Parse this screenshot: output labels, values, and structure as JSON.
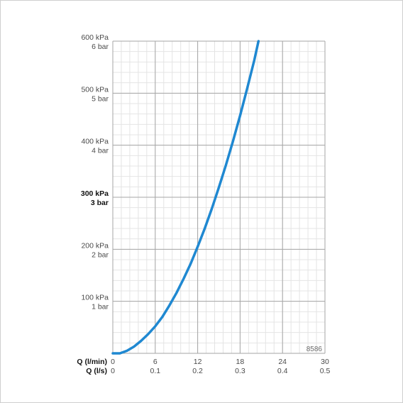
{
  "chart_data": {
    "type": "line",
    "title": "",
    "x_axis": {
      "label_primary": "Q (l/min)",
      "label_secondary": "Q (l/s)",
      "range": [
        0,
        30
      ],
      "ticks_primary": [
        {
          "value": 0,
          "label": "0"
        },
        {
          "value": 6,
          "label": "6"
        },
        {
          "value": 12,
          "label": "12"
        },
        {
          "value": 18,
          "label": "18"
        },
        {
          "value": 24,
          "label": "24"
        },
        {
          "value": 30,
          "label": "30"
        }
      ],
      "ticks_secondary": [
        {
          "value": 0,
          "label": "0"
        },
        {
          "value": 6,
          "label": "0.1"
        },
        {
          "value": 12,
          "label": "0.2"
        },
        {
          "value": 18,
          "label": "0.3"
        },
        {
          "value": 24,
          "label": "0.4"
        },
        {
          "value": 30,
          "label": "0.5"
        }
      ]
    },
    "y_axis": {
      "range": [
        0,
        600
      ],
      "unit": "kPa",
      "ticks": [
        {
          "value": 100,
          "kpa": "100 kPa",
          "bar": "1 bar",
          "bold": false
        },
        {
          "value": 200,
          "kpa": "200 kPa",
          "bar": "2 bar",
          "bold": false
        },
        {
          "value": 300,
          "kpa": "300 kPa",
          "bar": "3 bar",
          "bold": true
        },
        {
          "value": 400,
          "kpa": "400 kPa",
          "bar": "4 bar",
          "bold": false
        },
        {
          "value": 500,
          "kpa": "500 kPa",
          "bar": "5 bar",
          "bold": false
        },
        {
          "value": 600,
          "kpa": "600 kPa",
          "bar": "6 bar",
          "bold": false
        }
      ]
    },
    "grid": true,
    "minor_divisions": 5,
    "series": [
      {
        "color": "#1f88d1",
        "points": [
          {
            "x": 0,
            "y": 0
          },
          {
            "x": 1,
            "y": 0
          },
          {
            "x": 2,
            "y": 5
          },
          {
            "x": 3,
            "y": 13
          },
          {
            "x": 4,
            "y": 24
          },
          {
            "x": 5,
            "y": 37
          },
          {
            "x": 6,
            "y": 52
          },
          {
            "x": 7,
            "y": 70
          },
          {
            "x": 8,
            "y": 92
          },
          {
            "x": 9,
            "y": 116
          },
          {
            "x": 10,
            "y": 143
          },
          {
            "x": 11,
            "y": 172
          },
          {
            "x": 12,
            "y": 205
          },
          {
            "x": 13,
            "y": 240
          },
          {
            "x": 14,
            "y": 278
          },
          {
            "x": 15,
            "y": 319
          },
          {
            "x": 16,
            "y": 362
          },
          {
            "x": 17,
            "y": 408
          },
          {
            "x": 18,
            "y": 457
          },
          {
            "x": 19,
            "y": 509
          },
          {
            "x": 20,
            "y": 563
          },
          {
            "x": 20.6,
            "y": 600
          }
        ]
      }
    ],
    "reference_code": "8586"
  }
}
